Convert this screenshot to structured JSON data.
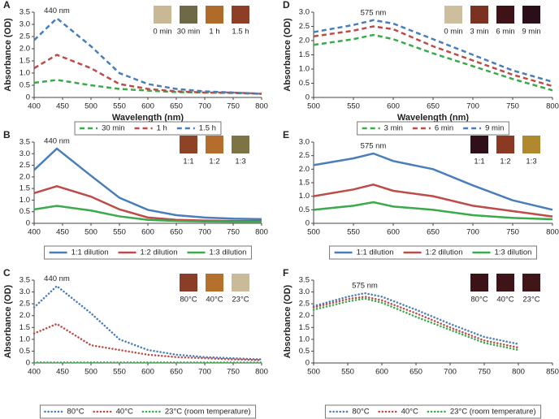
{
  "chart_data": [
    {
      "type": "line",
      "panel": "A",
      "annotation": "440 nm",
      "xlabel": "Wavelength (nm)",
      "ylabel": "Absorbance (OD)",
      "legend": "bottom",
      "xlim": [
        400,
        800
      ],
      "xticks": [
        400,
        450,
        500,
        550,
        600,
        650,
        700,
        750,
        800
      ],
      "ylim": [
        0,
        3.5
      ],
      "yticks": [
        0,
        0.5,
        {
          "value": 1,
          "label": "1.0"
        },
        1.5,
        {
          "value": 2,
          "label": "2.0"
        },
        2.5,
        {
          "value": 3,
          "label": "3.0"
        },
        3.5
      ],
      "swatches": [
        {
          "label": "0 min",
          "color": "#c9b894"
        },
        {
          "label": "30 min",
          "color": "#6e6a48"
        },
        {
          "label": "1 h",
          "color": "#b06a2a"
        },
        {
          "label": "1.5 h",
          "color": "#8e3d26"
        }
      ],
      "x": [
        400,
        440,
        500,
        550,
        600,
        650,
        700,
        750,
        800
      ],
      "series": [
        {
          "name": "30 min",
          "color": "#3aaa4a",
          "dash": "dashed",
          "values": [
            0.6,
            0.72,
            0.5,
            0.35,
            0.28,
            0.22,
            0.2,
            0.18,
            0.15
          ]
        },
        {
          "name": "1 h",
          "color": "#be4b48",
          "dash": "dashed",
          "values": [
            1.2,
            1.75,
            1.2,
            0.55,
            0.35,
            0.25,
            0.2,
            0.2,
            0.15
          ]
        },
        {
          "name": "1.5 h",
          "color": "#4a7ebb",
          "dash": "dashed",
          "values": [
            2.35,
            3.25,
            2.1,
            1.0,
            0.55,
            0.35,
            0.25,
            0.2,
            0.15
          ]
        }
      ]
    },
    {
      "type": "line",
      "panel": "B",
      "annotation": "440 nm",
      "legend": "bottom",
      "xlim": [
        400,
        800
      ],
      "xticks": [
        400,
        450,
        500,
        550,
        600,
        650,
        700,
        750,
        800
      ],
      "ylim": [
        0,
        3.5
      ],
      "yticks": [
        0,
        0.5,
        {
          "value": 1,
          "label": "1.0"
        },
        1.5,
        {
          "value": 2,
          "label": "2.0"
        },
        2.5,
        {
          "value": 3,
          "label": "3.0"
        },
        3.5
      ],
      "swatches": [
        {
          "label": "1:1",
          "color": "#8e4326"
        },
        {
          "label": "1:2",
          "color": "#b56d2c"
        },
        {
          "label": "1:3",
          "color": "#7d7446"
        }
      ],
      "x": [
        400,
        440,
        500,
        550,
        600,
        650,
        700,
        750,
        800
      ],
      "series": [
        {
          "name": "1:1 dilution",
          "color": "#4a7ebb",
          "dash": "solid",
          "values": [
            2.3,
            3.22,
            2.05,
            1.1,
            0.58,
            0.35,
            0.25,
            0.2,
            0.18
          ]
        },
        {
          "name": "1:2 dilution",
          "color": "#be4b48",
          "dash": "solid",
          "values": [
            1.3,
            1.6,
            1.15,
            0.6,
            0.25,
            0.15,
            0.12,
            0.1,
            0.1
          ]
        },
        {
          "name": "1:3 dilution",
          "color": "#3aaa4a",
          "dash": "solid",
          "values": [
            0.6,
            0.75,
            0.55,
            0.3,
            0.15,
            0.1,
            0.08,
            0.07,
            0.07
          ]
        }
      ]
    },
    {
      "type": "line",
      "panel": "C",
      "annotation": "440 nm",
      "ylabel": "Absorbance (OD)",
      "legend": "bottom",
      "xlim": [
        400,
        800
      ],
      "xticks": [
        400,
        450,
        500,
        550,
        600,
        650,
        700,
        750,
        800
      ],
      "ylim": [
        0,
        3.5
      ],
      "yticks": [
        0,
        0.5,
        {
          "value": 1,
          "label": "1.0"
        },
        1.5,
        {
          "value": 2,
          "label": "2.0"
        },
        2.5,
        {
          "value": 3,
          "label": "3.0"
        },
        3.5
      ],
      "swatches": [
        {
          "label": "80°C",
          "color": "#8a3e28"
        },
        {
          "label": "40°C",
          "color": "#b5702c"
        },
        {
          "label": "23°C",
          "color": "#c9bb9a"
        }
      ],
      "x": [
        400,
        440,
        500,
        550,
        600,
        650,
        700,
        750,
        800
      ],
      "series": [
        {
          "name": "80°C",
          "color": "#4a7ebb",
          "dash": "dotted",
          "values": [
            2.35,
            3.25,
            2.1,
            1.0,
            0.55,
            0.35,
            0.25,
            0.2,
            0.15
          ]
        },
        {
          "name": "40°C",
          "color": "#be4b48",
          "dash": "dotted",
          "values": [
            1.25,
            1.65,
            0.75,
            0.55,
            0.35,
            0.25,
            0.2,
            0.15,
            0.12
          ]
        },
        {
          "name": "23°C (room temperature)",
          "color": "#3aaa4a",
          "dash": "dotted",
          "values": [
            0.02,
            0.02,
            0.02,
            0.02,
            0.02,
            0.02,
            0.02,
            0.02,
            0.02
          ]
        }
      ]
    },
    {
      "type": "line",
      "panel": "D",
      "annotation": "575 nm",
      "xlabel": "Wavelength (nm)",
      "ylabel": "Absorbance (OD)",
      "legend": "bottom",
      "xlim": [
        500,
        800
      ],
      "xticks": [
        500,
        550,
        600,
        650,
        700,
        750,
        800
      ],
      "ylim": [
        0,
        3
      ],
      "yticks": [
        0,
        0.5,
        {
          "value": 1,
          "label": "1.0"
        },
        1.5,
        {
          "value": 2,
          "label": "2.0"
        },
        2.5,
        {
          "value": 3,
          "label": "3.0"
        }
      ],
      "swatches": [
        {
          "label": "0 min",
          "color": "#cdbf9e"
        },
        {
          "label": "3 min",
          "color": "#7c3220"
        },
        {
          "label": "6 min",
          "color": "#3e1216"
        },
        {
          "label": "9 min",
          "color": "#2a0f1a"
        }
      ],
      "x": [
        500,
        550,
        575,
        600,
        650,
        700,
        750,
        800
      ],
      "series": [
        {
          "name": "3 min",
          "color": "#3aaa4a",
          "dash": "dashed",
          "values": [
            1.85,
            2.05,
            2.2,
            2.05,
            1.55,
            1.1,
            0.65,
            0.25
          ]
        },
        {
          "name": "6 min",
          "color": "#be4b48",
          "dash": "dashed",
          "values": [
            2.15,
            2.35,
            2.5,
            2.4,
            1.8,
            1.3,
            0.8,
            0.4
          ]
        },
        {
          "name": "9 min",
          "color": "#4a7ebb",
          "dash": "dashed",
          "values": [
            2.3,
            2.55,
            2.72,
            2.6,
            2.05,
            1.5,
            0.95,
            0.55
          ]
        }
      ]
    },
    {
      "type": "line",
      "panel": "E",
      "annotation": "575 nm",
      "legend": "bottom",
      "xlim": [
        500,
        800
      ],
      "xticks": [
        500,
        550,
        600,
        650,
        700,
        750,
        800
      ],
      "ylim": [
        0,
        3
      ],
      "yticks": [
        0,
        0.5,
        {
          "value": 1,
          "label": "1.0"
        },
        1.5,
        {
          "value": 2,
          "label": "2.0"
        },
        2.5,
        {
          "value": 3,
          "label": "3.0"
        }
      ],
      "swatches": [
        {
          "label": "1:1",
          "color": "#2e0f1a"
        },
        {
          "label": "1:2",
          "color": "#8a3a22"
        },
        {
          "label": "1:3",
          "color": "#b0892e"
        }
      ],
      "x": [
        500,
        550,
        575,
        600,
        650,
        700,
        750,
        800
      ],
      "series": [
        {
          "name": "1:1 dilution",
          "color": "#4a7ebb",
          "dash": "solid",
          "values": [
            2.15,
            2.4,
            2.58,
            2.3,
            2.0,
            1.4,
            0.85,
            0.5
          ]
        },
        {
          "name": "1:2 dilution",
          "color": "#be4b48",
          "dash": "solid",
          "values": [
            1.0,
            1.25,
            1.43,
            1.2,
            1.0,
            0.65,
            0.45,
            0.25
          ]
        },
        {
          "name": "1:3 dilution",
          "color": "#3aaa4a",
          "dash": "solid",
          "values": [
            0.5,
            0.65,
            0.78,
            0.62,
            0.5,
            0.3,
            0.2,
            0.15
          ]
        }
      ]
    },
    {
      "type": "line",
      "panel": "F",
      "annotation": "575 nm",
      "ylabel": "Absorbance (OD)",
      "legend": "bottom",
      "xlim": [
        500,
        850
      ],
      "xticks": [
        500,
        550,
        600,
        650,
        700,
        750,
        800,
        850
      ],
      "ylim": [
        0,
        3.5
      ],
      "yticks": [
        0,
        0.5,
        {
          "value": 1,
          "label": "1.0"
        },
        1.5,
        {
          "value": 2,
          "label": "2.0"
        },
        2.5,
        {
          "value": 3,
          "label": "3.0"
        },
        3.5
      ],
      "swatches": [
        {
          "label": "80°C",
          "color": "#3a1218"
        },
        {
          "label": "40°C",
          "color": "#3e1418"
        },
        {
          "label": "23°C",
          "color": "#401619"
        }
      ],
      "x": [
        500,
        550,
        575,
        600,
        650,
        700,
        750,
        800
      ],
      "series": [
        {
          "name": "80°C",
          "color": "#4a7ebb",
          "dash": "dotted",
          "values": [
            2.4,
            2.8,
            2.95,
            2.8,
            2.25,
            1.65,
            1.1,
            0.8
          ]
        },
        {
          "name": "40°C",
          "color": "#be4b48",
          "dash": "dotted",
          "values": [
            2.35,
            2.7,
            2.8,
            2.65,
            2.1,
            1.5,
            0.95,
            0.65
          ]
        },
        {
          "name": "23°C (room temperature)",
          "color": "#3aaa4a",
          "dash": "dotted",
          "values": [
            2.25,
            2.6,
            2.72,
            2.55,
            1.95,
            1.4,
            0.85,
            0.55
          ]
        }
      ]
    }
  ]
}
